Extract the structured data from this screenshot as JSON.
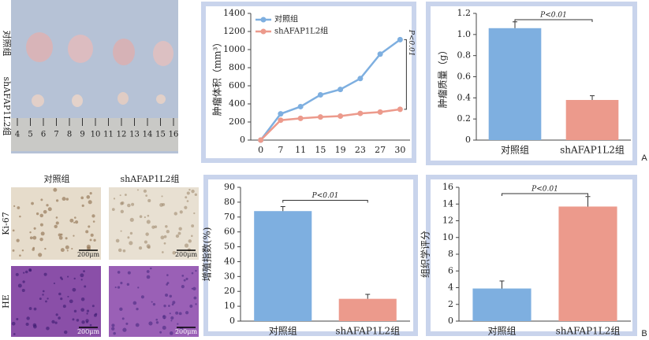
{
  "figure": {
    "photo_labels": [
      "对照组",
      "shAFAP1L2组"
    ],
    "ruler": [
      "4",
      "5",
      "6",
      "7",
      "8",
      "9",
      "10",
      "11",
      "12",
      "13",
      "14",
      "15",
      "16"
    ],
    "histology": {
      "columns": [
        "对照组",
        "shAFAP1L2组"
      ],
      "rows": [
        "Ki-67",
        "HE"
      ],
      "scale": "200μm"
    },
    "panel_letters": [
      "A",
      "B"
    ]
  },
  "chart_data": [
    {
      "type": "line",
      "y_label": "肿瘤体积（mm³）",
      "categories": [
        "0",
        "7",
        "11",
        "15",
        "19",
        "23",
        "27",
        "30"
      ],
      "series": [
        {
          "name": "对照组",
          "color": "#7eafe0",
          "values": [
            0,
            290,
            370,
            500,
            560,
            680,
            950,
            1110
          ]
        },
        {
          "name": "shAFAP1L2组",
          "color": "#ec9a8c",
          "values": [
            0,
            220,
            240,
            255,
            265,
            295,
            310,
            340
          ]
        }
      ],
      "ylim": [
        0,
        1400
      ],
      "yticks": [
        0,
        200,
        400,
        600,
        800,
        1000,
        1200,
        1400
      ],
      "legend": "upper left",
      "annotation": "P<0.01"
    },
    {
      "type": "bar",
      "y_label": "肿瘤质量（g）",
      "categories": [
        "对照组",
        "shAFAP1L2组"
      ],
      "values": [
        1.06,
        0.38
      ],
      "errors": [
        0.06,
        0.04
      ],
      "colors": [
        "#7eafe0",
        "#ec9a8c"
      ],
      "ylim": [
        0,
        1.2
      ],
      "yticks": [
        0,
        0.2,
        0.4,
        0.6,
        0.8,
        {
          "value": 1,
          "label": "1.0"
        },
        1.2
      ],
      "annotation": "P<0.01"
    },
    {
      "type": "bar",
      "y_label": "增殖指数(%)",
      "categories": [
        "对照组",
        "shAFAP1L2组"
      ],
      "values": [
        74,
        15
      ],
      "errors": [
        3,
        3
      ],
      "colors": [
        "#7eafe0",
        "#ec9a8c"
      ],
      "ylim": [
        0,
        90
      ],
      "yticks": [
        0,
        10,
        20,
        30,
        40,
        50,
        60,
        70,
        80,
        90
      ],
      "annotation": "P<0.01"
    },
    {
      "type": "bar",
      "y_label": "组织学评分",
      "categories": [
        "对照组",
        "shAFAP1L2组"
      ],
      "values": [
        3.9,
        13.7
      ],
      "errors": [
        0.9,
        1.2
      ],
      "colors": [
        "#7eafe0",
        "#ec9a8c"
      ],
      "ylim": [
        0,
        16
      ],
      "yticks": [
        0,
        2,
        4,
        6,
        8,
        10,
        12,
        14,
        16
      ],
      "annotation": "P<0.01"
    }
  ]
}
